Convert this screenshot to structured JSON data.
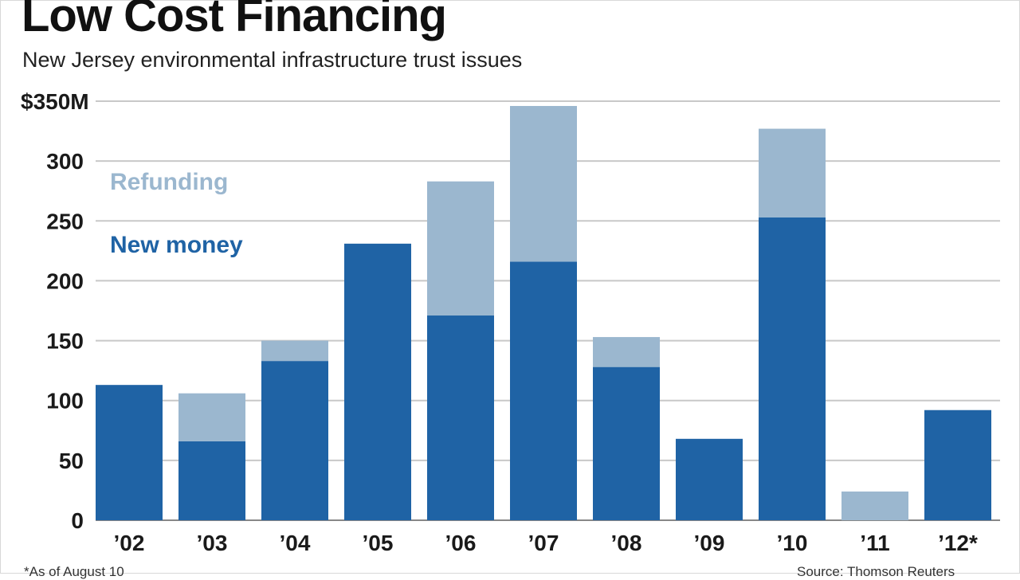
{
  "chart_data": {
    "type": "bar",
    "stacked": true,
    "title": "Low Cost Financing",
    "subtitle": "New Jersey environmental infrastructure trust issues",
    "categories": [
      "'02",
      "'03",
      "'04",
      "'05",
      "'06",
      "'07",
      "'08",
      "'09",
      "'10",
      "'11",
      "'12*"
    ],
    "series": [
      {
        "name": "New money",
        "color": "#1f63a5",
        "values": [
          113,
          66,
          133,
          231,
          171,
          216,
          128,
          68,
          253,
          0,
          92
        ]
      },
      {
        "name": "Refunding",
        "color": "#9bb7cf",
        "values": [
          0,
          40,
          17,
          0,
          112,
          130,
          25,
          0,
          74,
          24,
          0
        ]
      }
    ],
    "y_ticks": [
      {
        "value": 0,
        "label": "0"
      },
      {
        "value": 50,
        "label": "50"
      },
      {
        "value": 100,
        "label": "100"
      },
      {
        "value": 150,
        "label": "150"
      },
      {
        "value": 200,
        "label": "200"
      },
      {
        "value": 250,
        "label": "250"
      },
      {
        "value": 300,
        "label": "300"
      },
      {
        "value": 350,
        "label": "$350M"
      }
    ],
    "ylim": [
      0,
      350
    ],
    "grid": true,
    "legend_position": "top-left",
    "footnote": "*As of August 10",
    "source": "Source: Thomson Reuters"
  }
}
